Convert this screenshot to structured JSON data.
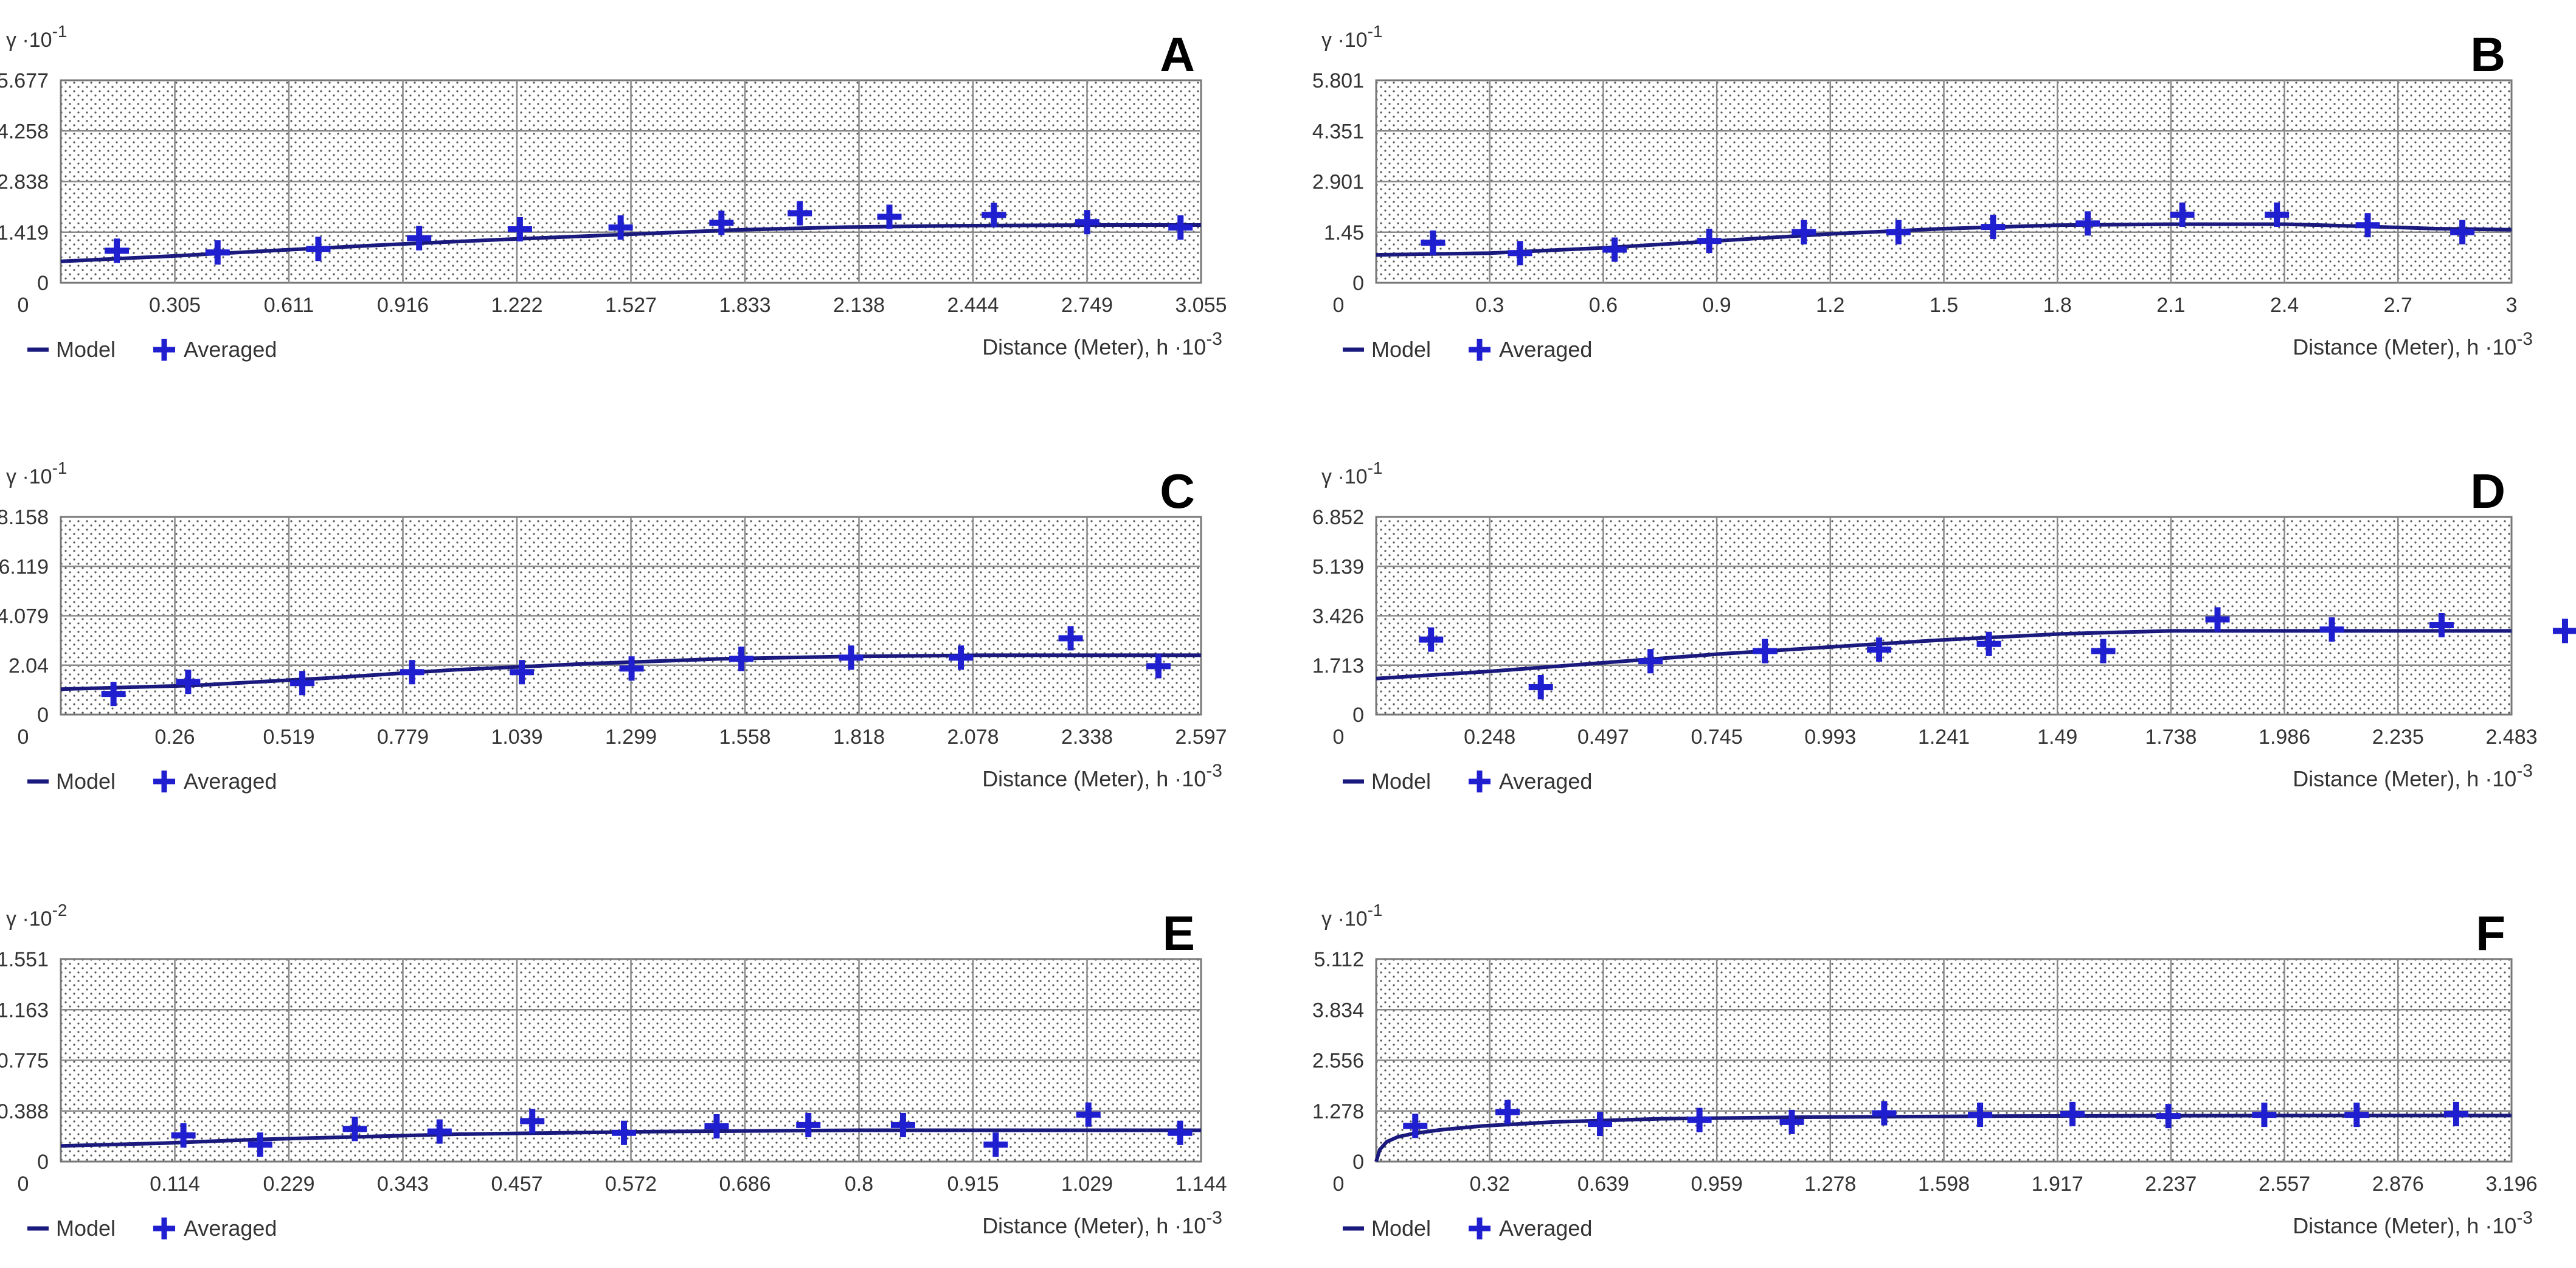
{
  "colors": {
    "frame": "#777777",
    "grid": "#8a8a8a",
    "dots": "#555555",
    "model": "#1a1a7e",
    "averaged": "#1f1fd0",
    "text": "#333333"
  },
  "legend": {
    "model": "Model",
    "averaged": "Averaged"
  },
  "chart_data": [
    {
      "panel": "A",
      "type": "line",
      "title": "A",
      "ylabel": "γ ·10",
      "yexp": "-1",
      "xlabel": "Distance (Meter), h ·10",
      "xexp": "-3",
      "xlim": [
        0,
        3.055
      ],
      "ylim": [
        0,
        5.677
      ],
      "xticks": [
        "0",
        "0.305",
        "0.611",
        "0.916",
        "1.222",
        "1.527",
        "1.833",
        "2.138",
        "2.444",
        "2.749",
        "3.055"
      ],
      "yticks": [
        "0",
        "1.419",
        "2.838",
        "4.258",
        "5.677"
      ],
      "model": {
        "x": [
          0,
          0.3,
          0.6,
          0.9,
          1.2,
          1.5,
          1.8,
          2.1,
          2.4,
          2.8,
          3.055
        ],
        "y": [
          0.6,
          0.75,
          0.92,
          1.08,
          1.22,
          1.35,
          1.48,
          1.56,
          1.6,
          1.62,
          1.62
        ]
      },
      "series": [
        {
          "name": "Averaged",
          "x": [
            0.15,
            0.42,
            0.69,
            0.96,
            1.23,
            1.5,
            1.77,
            1.98,
            2.22,
            2.5,
            2.75,
            3.0
          ],
          "y": [
            0.9,
            0.85,
            0.95,
            1.25,
            1.5,
            1.55,
            1.68,
            1.95,
            1.85,
            1.9,
            1.7,
            1.55
          ]
        }
      ]
    },
    {
      "panel": "B",
      "type": "line",
      "title": "B",
      "ylabel": "γ ·10",
      "yexp": "-1",
      "xlabel": "Distance (Meter), h ·10",
      "xexp": "-3",
      "xlim": [
        0,
        3
      ],
      "ylim": [
        0,
        5.801
      ],
      "xticks": [
        "0",
        "0.3",
        "0.6",
        "0.9",
        "1.2",
        "1.5",
        "1.8",
        "2.1",
        "2.4",
        "2.7",
        "3"
      ],
      "yticks": [
        "0",
        "1.45",
        "2.901",
        "4.351",
        "5.801"
      ],
      "model": {
        "x": [
          0,
          0.3,
          0.6,
          0.9,
          1.2,
          1.5,
          1.8,
          2.1,
          2.4,
          2.6,
          2.8,
          3
        ],
        "y": [
          0.8,
          0.85,
          1.0,
          1.2,
          1.4,
          1.55,
          1.65,
          1.68,
          1.68,
          1.62,
          1.55,
          1.52
        ]
      },
      "series": [
        {
          "name": "Averaged",
          "x": [
            0.15,
            0.38,
            0.63,
            0.88,
            1.13,
            1.38,
            1.63,
            1.88,
            2.13,
            2.38,
            2.62,
            2.87
          ],
          "y": [
            1.15,
            0.85,
            0.95,
            1.2,
            1.45,
            1.45,
            1.6,
            1.7,
            1.95,
            1.95,
            1.65,
            1.45
          ]
        }
      ]
    },
    {
      "panel": "C",
      "type": "line",
      "title": "C",
      "ylabel": "γ ·10",
      "yexp": "-1",
      "xlabel": "Distance (Meter), h ·10",
      "xexp": "-3",
      "xlim": [
        0,
        2.597
      ],
      "ylim": [
        0,
        8.158
      ],
      "xticks": [
        "0",
        "0.26",
        "0.519",
        "0.779",
        "1.039",
        "1.299",
        "1.558",
        "1.818",
        "2.078",
        "2.338",
        "2.597"
      ],
      "yticks": [
        "0",
        "2.04",
        "4.079",
        "6.119",
        "8.158"
      ],
      "model": {
        "x": [
          0,
          0.3,
          0.6,
          0.9,
          1.2,
          1.5,
          1.8,
          2.1,
          2.4,
          2.597
        ],
        "y": [
          1.05,
          1.2,
          1.5,
          1.85,
          2.1,
          2.3,
          2.4,
          2.45,
          2.45,
          2.45
        ]
      },
      "series": [
        {
          "name": "Averaged",
          "x": [
            0.12,
            0.29,
            0.55,
            0.8,
            1.05,
            1.3,
            1.55,
            1.8,
            2.05,
            2.3,
            2.5
          ],
          "y": [
            0.85,
            1.35,
            1.3,
            1.75,
            1.75,
            1.9,
            2.3,
            2.35,
            2.35,
            3.15,
            2.0
          ]
        }
      ]
    },
    {
      "panel": "D",
      "type": "line",
      "title": "D",
      "ylabel": "γ ·10",
      "yexp": "-1",
      "xlabel": "Distance (Meter), h ·10",
      "xexp": "-3",
      "xlim": [
        0,
        2.483
      ],
      "ylim": [
        0,
        6.852
      ],
      "xticks": [
        "0",
        "0.248",
        "0.497",
        "0.745",
        "0.993",
        "1.241",
        "1.49",
        "1.738",
        "1.986",
        "2.235",
        "2.483"
      ],
      "yticks": [
        "0",
        "1.713",
        "3.426",
        "5.139",
        "6.852"
      ],
      "model": {
        "x": [
          0,
          0.25,
          0.5,
          0.75,
          1.0,
          1.25,
          1.5,
          1.74,
          2.0,
          2.24,
          2.483
        ],
        "y": [
          1.25,
          1.5,
          1.8,
          2.1,
          2.35,
          2.6,
          2.8,
          2.9,
          2.9,
          2.9,
          2.9
        ]
      },
      "series": [
        {
          "name": "Averaged",
          "x": [
            0.12,
            0.36,
            0.6,
            0.85,
            1.1,
            1.34,
            1.59,
            1.84,
            2.09,
            2.33,
            2.6
          ],
          "y": [
            2.6,
            0.95,
            1.85,
            2.2,
            2.25,
            2.45,
            2.2,
            3.3,
            2.95,
            3.1,
            2.9
          ]
        }
      ]
    },
    {
      "panel": "E",
      "type": "line",
      "title": "E",
      "ylabel": "γ ·10",
      "yexp": "-2",
      "xlabel": "Distance (Meter), h ·10",
      "xexp": "-3",
      "xlim": [
        0,
        1.144
      ],
      "ylim": [
        0,
        1.551
      ],
      "xticks": [
        "0",
        "0.114",
        "0.229",
        "0.343",
        "0.457",
        "0.572",
        "0.686",
        "0.8",
        "0.915",
        "1.029",
        "1.144"
      ],
      "yticks": [
        "0",
        "0.388",
        "0.775",
        "1.163",
        "1.551"
      ],
      "model": {
        "x": [
          0,
          0.1,
          0.2,
          0.3,
          0.4,
          0.5,
          0.6,
          0.8,
          1.0,
          1.144
        ],
        "y": [
          0.12,
          0.14,
          0.17,
          0.19,
          0.21,
          0.22,
          0.23,
          0.24,
          0.24,
          0.24
        ]
      },
      "series": [
        {
          "name": "Averaged",
          "x": [
            0.123,
            0.2,
            0.295,
            0.38,
            0.473,
            0.565,
            0.658,
            0.75,
            0.845,
            0.938,
            1.031,
            1.123
          ],
          "y": [
            0.2,
            0.13,
            0.25,
            0.23,
            0.31,
            0.22,
            0.27,
            0.28,
            0.28,
            0.13,
            0.36,
            0.22
          ]
        }
      ]
    },
    {
      "panel": "F",
      "type": "line",
      "title": "F",
      "ylabel": "γ ·10",
      "yexp": "-1",
      "xlabel": "Distance (Meter), h ·10",
      "xexp": "-3",
      "xlim": [
        0,
        3.196
      ],
      "ylim": [
        0,
        5.112
      ],
      "xticks": [
        "0",
        "0.32",
        "0.639",
        "0.959",
        "1.278",
        "1.598",
        "1.917",
        "2.237",
        "2.557",
        "2.876",
        "3.196"
      ],
      "yticks": [
        "0",
        "1.278",
        "2.556",
        "3.834",
        "5.112"
      ],
      "model": {
        "x": [
          0,
          0.01,
          0.03,
          0.06,
          0.1,
          0.18,
          0.3,
          0.5,
          0.8,
          1.2,
          1.8,
          2.5,
          3.196
        ],
        "y": [
          0,
          0.3,
          0.5,
          0.62,
          0.7,
          0.8,
          0.9,
          1.0,
          1.08,
          1.12,
          1.15,
          1.16,
          1.16
        ]
      },
      "series": [
        {
          "name": "Averaged",
          "x": [
            0.11,
            0.37,
            0.63,
            0.91,
            1.17,
            1.43,
            1.7,
            1.96,
            2.23,
            2.5,
            2.76,
            3.04
          ],
          "y": [
            0.9,
            1.25,
            0.95,
            1.05,
            1.0,
            1.22,
            1.18,
            1.2,
            1.15,
            1.18,
            1.18,
            1.2
          ]
        }
      ]
    }
  ]
}
